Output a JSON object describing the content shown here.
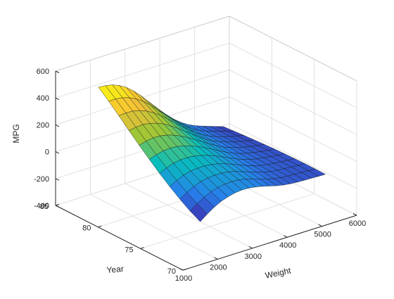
{
  "chart_data": {
    "type": "surface",
    "title": "",
    "xlabel": "Weight",
    "ylabel": "Year",
    "zlabel": "MPG",
    "xlim": [
      1000,
      6000
    ],
    "ylim": [
      70,
      85
    ],
    "zlim": [
      -400,
      600
    ],
    "xticks": [
      "1000",
      "2000",
      "3000",
      "4000",
      "5000",
      "6000"
    ],
    "yticks": [
      "70",
      "75",
      "80",
      "85"
    ],
    "zticks": [
      "-400",
      "-200",
      "0",
      "200",
      "400",
      "600"
    ],
    "grid": true,
    "colormap": "parula",
    "surface_x": [
      1500,
      1700,
      1900,
      2100,
      2300,
      2500,
      2700,
      2900,
      3100,
      3300,
      3500,
      3700,
      3900,
      4100,
      4300,
      4500,
      4700,
      4900,
      5100
    ],
    "surface_y": [
      70,
      71.2,
      72.4,
      73.6,
      74.8,
      76,
      77.2,
      78.4,
      79.6,
      80.8,
      82
    ],
    "surface_z_description": "MPG surface fitted over Weight and Year; values shown per grid node",
    "surface_z": [
      [
        -80,
        -40,
        -5,
        22,
        40,
        53,
        58,
        56,
        48,
        36,
        22,
        8,
        -3,
        -10,
        -14,
        -16,
        -18,
        -20,
        -22
      ],
      [
        -40,
        0,
        30,
        55,
        70,
        80,
        82,
        78,
        68,
        52,
        36,
        20,
        6,
        -3,
        -8,
        -11,
        -14,
        -17,
        -20
      ],
      [
        10,
        45,
        72,
        92,
        103,
        108,
        106,
        99,
        86,
        68,
        50,
        32,
        15,
        4,
        -3,
        -8,
        -12,
        -16,
        -20
      ],
      [
        65,
        95,
        118,
        132,
        138,
        138,
        132,
        121,
        105,
        85,
        64,
        43,
        24,
        10,
        1,
        -6,
        -11,
        -16,
        -21
      ],
      [
        125,
        150,
        168,
        177,
        178,
        172,
        161,
        145,
        125,
        102,
        78,
        54,
        33,
        16,
        5,
        -4,
        -11,
        -17,
        -23
      ],
      [
        190,
        210,
        222,
        226,
        221,
        210,
        193,
        172,
        147,
        120,
        92,
        65,
        41,
        22,
        8,
        -3,
        -12,
        -19,
        -26
      ],
      [
        258,
        272,
        280,
        278,
        268,
        251,
        228,
        200,
        170,
        138,
        106,
        76,
        49,
        28,
        11,
        -2,
        -13,
        -22,
        -30
      ],
      [
        328,
        337,
        340,
        333,
        318,
        295,
        265,
        231,
        194,
        157,
        120,
        86,
        56,
        33,
        14,
        -1,
        -14,
        -25,
        -35
      ],
      [
        400,
        404,
        402,
        390,
        370,
        341,
        304,
        262,
        219,
        176,
        134,
        96,
        63,
        37,
        16,
        -1,
        -15,
        -28,
        -40
      ],
      [
        470,
        470,
        463,
        446,
        421,
        386,
        343,
        294,
        244,
        195,
        148,
        106,
        70,
        41,
        18,
        0,
        -16,
        -31,
        -46
      ],
      [
        535,
        531,
        520,
        499,
        469,
        428,
        379,
        323,
        267,
        212,
        160,
        114,
        75,
        44,
        20,
        1,
        -17,
        -34,
        -52
      ]
    ]
  }
}
